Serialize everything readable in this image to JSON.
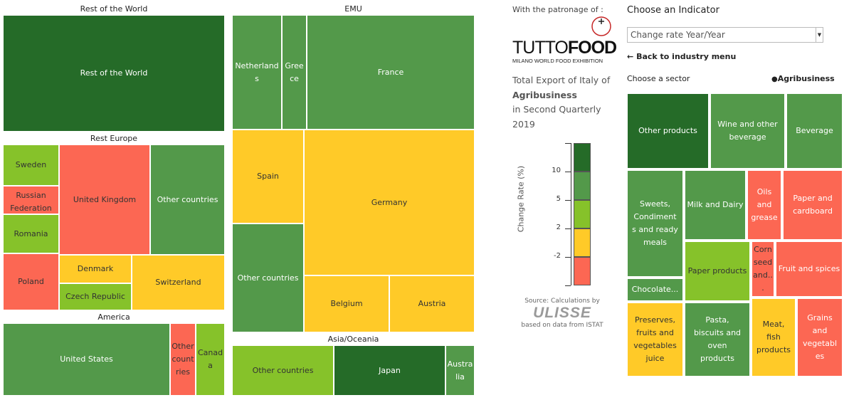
{
  "treemap": {
    "groups": [
      {
        "title": "Rest of the World"
      },
      {
        "title": "EMU"
      },
      {
        "title": "Rest Europe"
      },
      {
        "title": "America"
      },
      {
        "title": "Asia/Oceania"
      }
    ],
    "cells": {
      "rest_of_world": "Rest of the World",
      "netherlands": "Netherlands",
      "greece": "Greece",
      "france": "France",
      "spain": "Spain",
      "germany": "Germany",
      "emu_other": "Other countries",
      "belgium": "Belgium",
      "austria": "Austria",
      "sweden": "Sweden",
      "russia": "Russian Federation",
      "romania": "Romania",
      "poland": "Poland",
      "uk": "United Kingdom",
      "re_other": "Other countries",
      "denmark": "Denmark",
      "czech": "Czech Republic",
      "switzerland": "Switzerland",
      "us": "United States",
      "am_other": "Other countries",
      "canada": "Canada",
      "as_other": "Other countries",
      "japan": "Japan",
      "australia": "Australia"
    }
  },
  "info": {
    "patronage": "With the patronage of :",
    "logo_main_a": "TUTTO",
    "logo_main_b": "FOOD",
    "logo_sub": "MILANO WORLD FOOD EXHIBITION",
    "desc_line1": "Total Export of Italy of",
    "desc_bold": "Agribusiness",
    "desc_line3": "in Second Quarterly",
    "desc_line4": "2019",
    "legend_title": "Change Rate (%)",
    "legend_ticks": [
      "10",
      "5",
      "2",
      "-2"
    ],
    "legend_colors": [
      "#256b28",
      "#53994a",
      "#86c22a",
      "#ffca28",
      "#fc6753"
    ],
    "source_line1": "Source: Calculations by",
    "source_logo": "ULISSE",
    "source_line2": "based on data from ISTAT"
  },
  "panel": {
    "title": "Choose an Indicator",
    "indicator_value": "Change rate Year/Year",
    "back_label": "Back to industry menu",
    "choose_sector": "Choose a sector",
    "current_sector": "Agribusiness"
  },
  "sectors": {
    "other_products": "Other products",
    "wine": "Wine and other beverage",
    "beverage": "Beverage",
    "sweets": "Sweets, Condiments and ready meals",
    "milk": "Milk and Dairy",
    "oils": "Oils and grease",
    "paper_cardboard": "Paper and cardboard",
    "paper_products": "Paper products",
    "corn": "Corn seed and...",
    "fruit_spices": "Fruit and spices",
    "chocolate": "Chocolate...",
    "preserves": "Preserves, fruits and vegetables juice",
    "pasta": "Pasta, biscuits and oven products",
    "meat": "Meat, fish products",
    "grains": "Grains and vegetables"
  }
}
